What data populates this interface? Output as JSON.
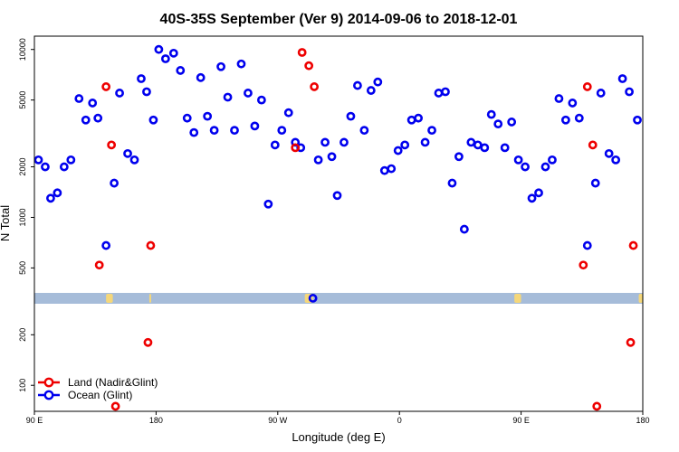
{
  "chart_data": {
    "type": "scatter",
    "title": "40S-35S September (Ver 9)   2014-09-06 to 2018-12-01",
    "xlabel": "Longitude (deg E)",
    "ylabel": "N Total",
    "x_tick_labels": [
      "90 E",
      "180",
      "90 W",
      "0",
      "90 E",
      "180"
    ],
    "x_tick_values": [
      90,
      180,
      270,
      360,
      450,
      540
    ],
    "xlim": [
      90,
      540
    ],
    "y_tick_labels": [
      "100",
      "200",
      "500",
      "1000",
      "2000",
      "5000",
      "10000"
    ],
    "y_tick_values": [
      100,
      200,
      500,
      1000,
      2000,
      5000,
      10000
    ],
    "ylim": [
      70,
      12000
    ],
    "y_scale": "log",
    "grid": false,
    "legend_position": "bottom-left",
    "land_band": {
      "color": "#a6bcd9",
      "land_color": "#f5d77a",
      "land_longitudes": [
        [
          143,
          148
        ],
        [
          175,
          176
        ],
        [
          290,
          296
        ],
        [
          445,
          450
        ],
        [
          537,
          540
        ]
      ]
    },
    "series": [
      {
        "name": "Land (Nadir&Glint)",
        "color": "#ee0000",
        "points": [
          [
            138,
            520
          ],
          [
            143,
            6000
          ],
          [
            147,
            2700
          ],
          [
            150,
            75
          ],
          [
            174,
            180
          ],
          [
            176,
            680
          ],
          [
            283,
            2600
          ],
          [
            288,
            9600
          ],
          [
            293,
            8000
          ],
          [
            297,
            6000
          ],
          [
            496,
            520
          ],
          [
            499,
            6000
          ],
          [
            503,
            2700
          ],
          [
            506,
            75
          ],
          [
            531,
            180
          ],
          [
            533,
            680
          ]
        ]
      },
      {
        "name": "Ocean (Glint)",
        "color": "#0000ee",
        "points": [
          [
            93,
            2200
          ],
          [
            98,
            2000
          ],
          [
            102,
            1300
          ],
          [
            107,
            1400
          ],
          [
            112,
            2000
          ],
          [
            117,
            2200
          ],
          [
            123,
            5100
          ],
          [
            128,
            3800
          ],
          [
            133,
            4800
          ],
          [
            137,
            3900
          ],
          [
            143,
            680
          ],
          [
            149,
            1600
          ],
          [
            153,
            5500
          ],
          [
            159,
            2400
          ],
          [
            164,
            2200
          ],
          [
            169,
            6700
          ],
          [
            173,
            5600
          ],
          [
            178,
            3800
          ],
          [
            182,
            10000
          ],
          [
            187,
            8800
          ],
          [
            193,
            9500
          ],
          [
            198,
            7500
          ],
          [
            203,
            3900
          ],
          [
            208,
            3200
          ],
          [
            213,
            6800
          ],
          [
            218,
            4000
          ],
          [
            223,
            3300
          ],
          [
            228,
            7900
          ],
          [
            233,
            5200
          ],
          [
            238,
            3300
          ],
          [
            243,
            8200
          ],
          [
            248,
            5500
          ],
          [
            253,
            3500
          ],
          [
            258,
            5000
          ],
          [
            263,
            1200
          ],
          [
            268,
            2700
          ],
          [
            273,
            3300
          ],
          [
            278,
            4200
          ],
          [
            283,
            2800
          ],
          [
            287,
            2600
          ],
          [
            296,
            330
          ],
          [
            300,
            2200
          ],
          [
            305,
            2800
          ],
          [
            310,
            2300
          ],
          [
            314,
            1350
          ],
          [
            319,
            2800
          ],
          [
            324,
            4000
          ],
          [
            329,
            6100
          ],
          [
            334,
            3300
          ],
          [
            339,
            5700
          ],
          [
            344,
            6400
          ],
          [
            349,
            1900
          ],
          [
            354,
            1950
          ],
          [
            359,
            2500
          ],
          [
            364,
            2700
          ],
          [
            369,
            3800
          ],
          [
            374,
            3900
          ],
          [
            379,
            2800
          ],
          [
            384,
            3300
          ],
          [
            389,
            5500
          ],
          [
            394,
            5600
          ],
          [
            399,
            1600
          ],
          [
            404,
            2300
          ],
          [
            408,
            850
          ],
          [
            413,
            2800
          ],
          [
            418,
            2700
          ],
          [
            423,
            2600
          ],
          [
            428,
            4100
          ],
          [
            433,
            3600
          ],
          [
            438,
            2600
          ],
          [
            443,
            3700
          ],
          [
            448,
            2200
          ],
          [
            453,
            2000
          ],
          [
            458,
            1300
          ],
          [
            463,
            1400
          ],
          [
            468,
            2000
          ],
          [
            473,
            2200
          ],
          [
            478,
            5100
          ],
          [
            483,
            3800
          ],
          [
            488,
            4800
          ],
          [
            493,
            3900
          ],
          [
            499,
            680
          ],
          [
            505,
            1600
          ],
          [
            509,
            5500
          ],
          [
            515,
            2400
          ],
          [
            520,
            2200
          ],
          [
            525,
            6700
          ],
          [
            530,
            5600
          ],
          [
            536,
            3800
          ]
        ]
      }
    ]
  }
}
